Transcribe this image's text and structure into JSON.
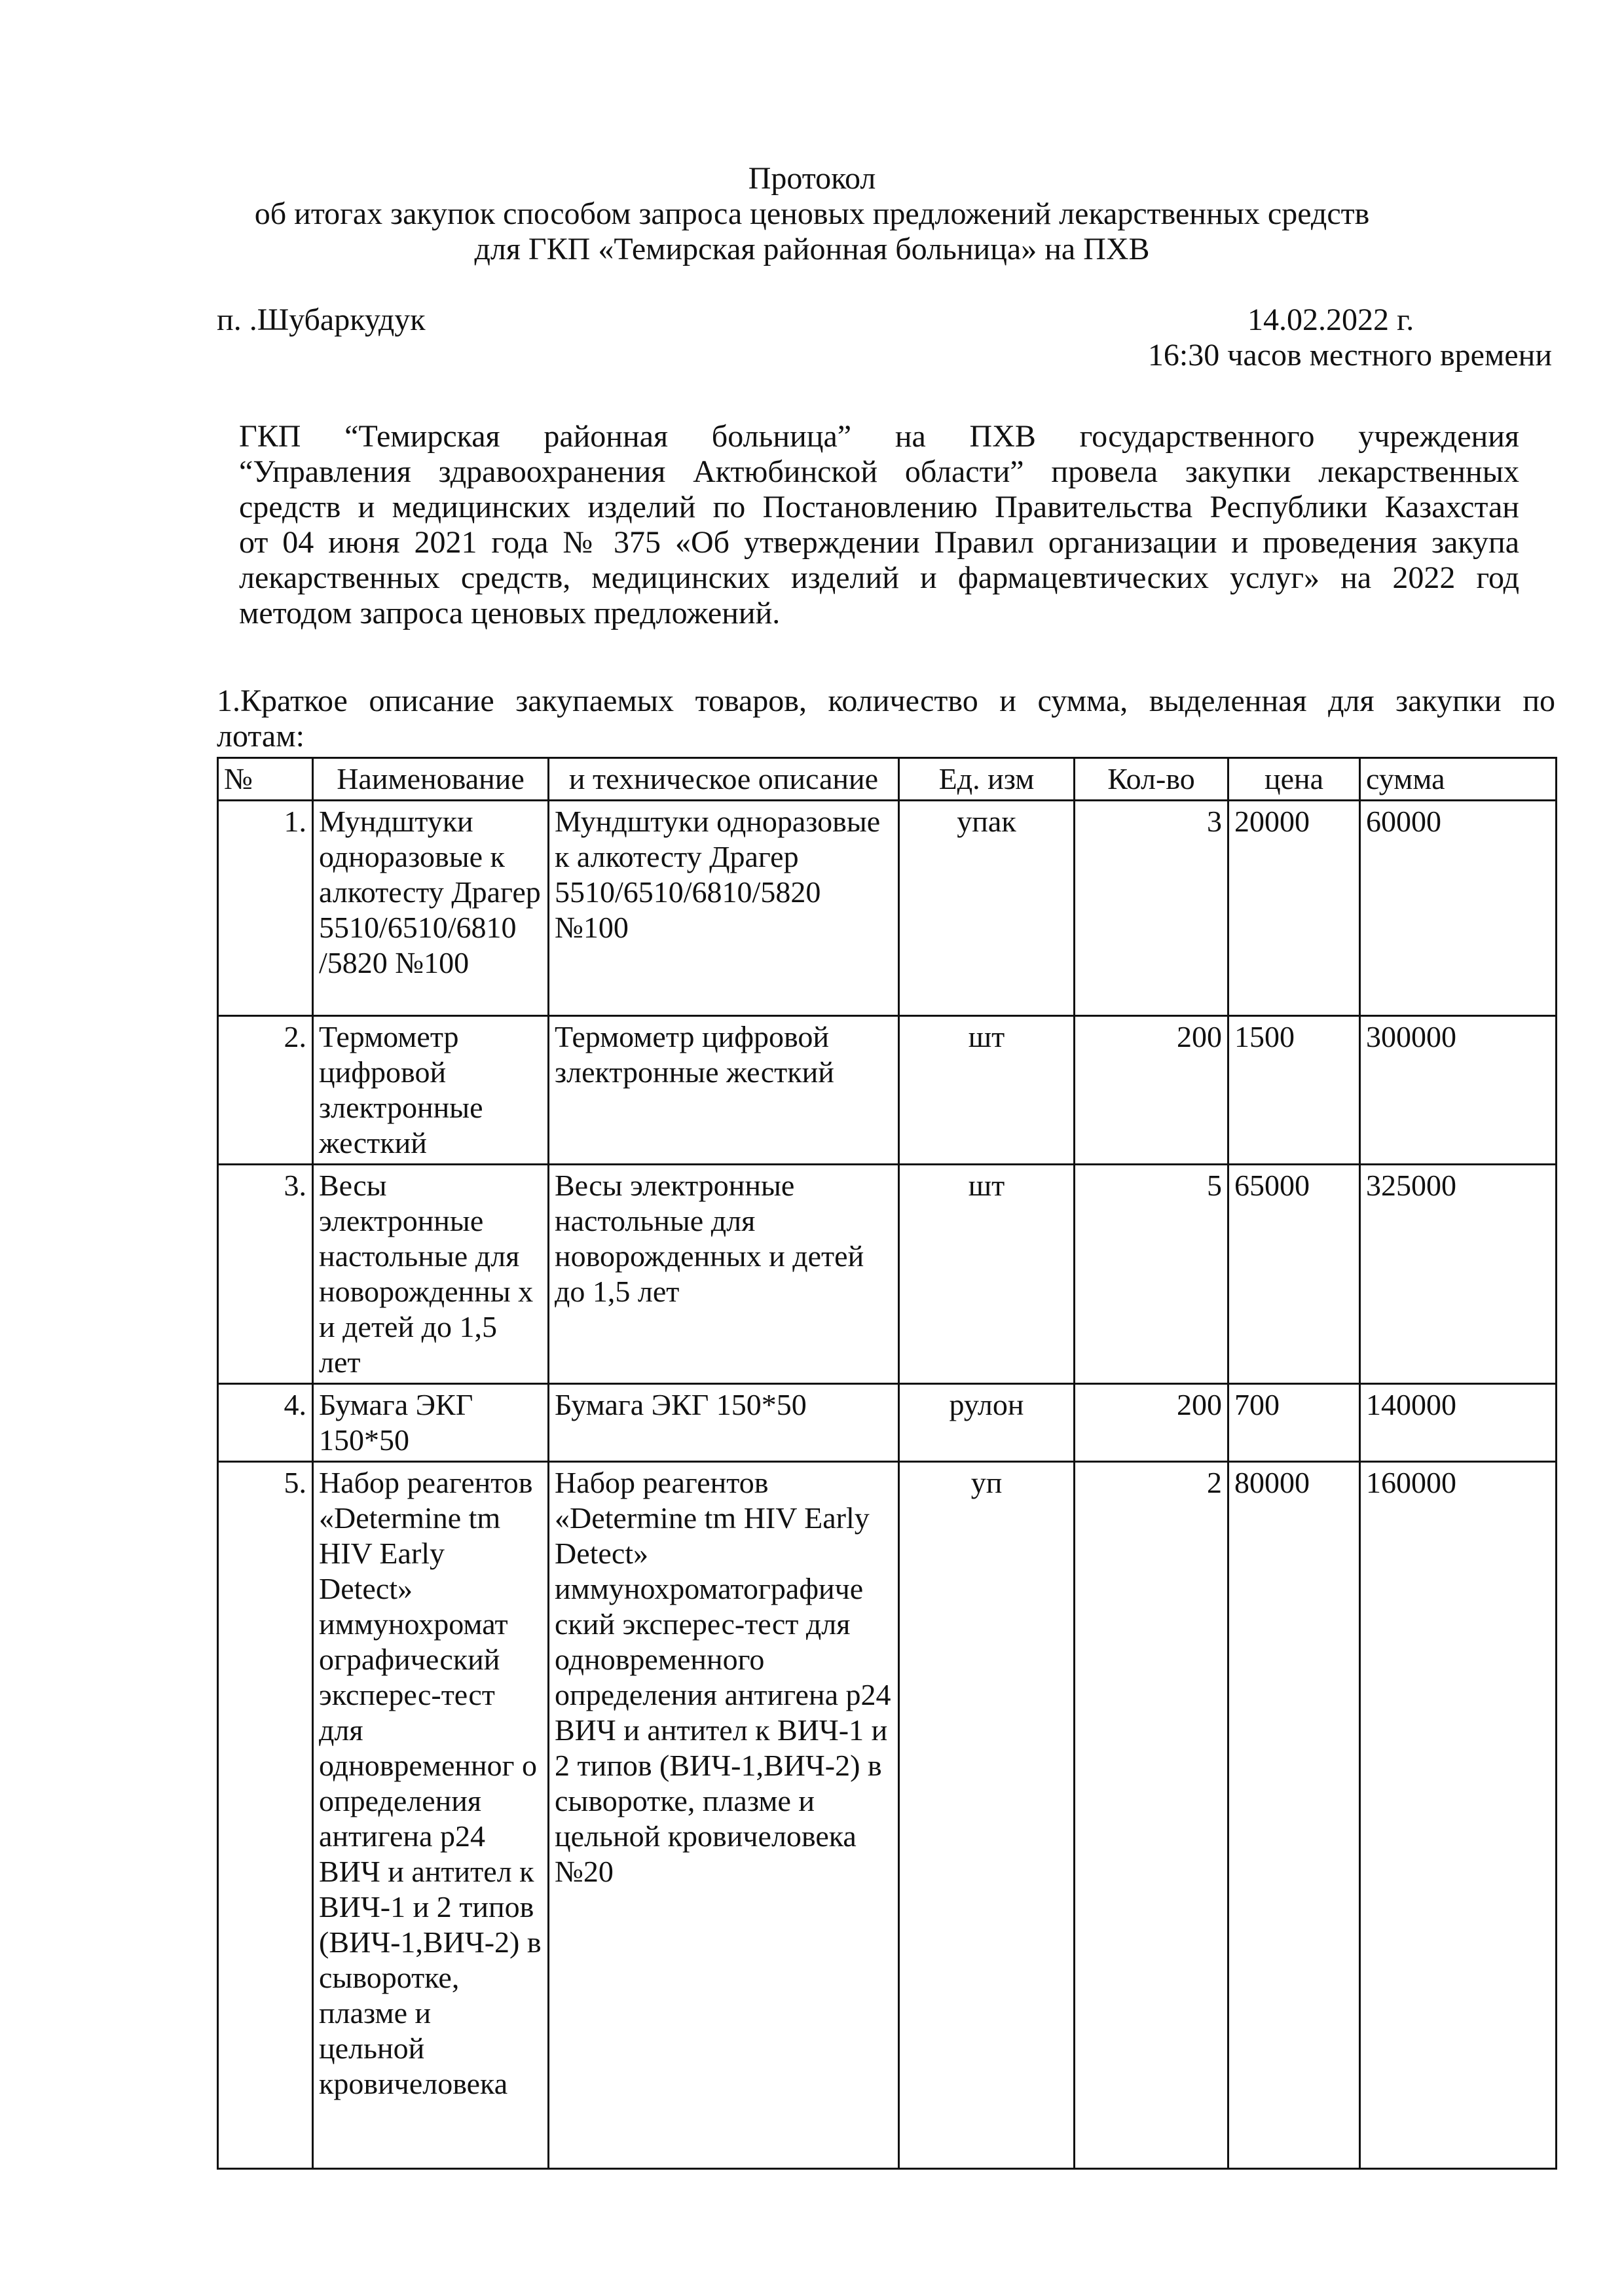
{
  "header": {
    "title": "Протокол",
    "subtitle_line1": "об итогах закупок способом запроса ценовых предложений лекарственных средств",
    "subtitle_line2": "для ГКП «Темирская районная больница» на ПХВ",
    "place": "п. .Шубаркудук",
    "date": "14.02.2022 г.",
    "time": "16:30 часов местного времени"
  },
  "body": {
    "paragraph_lines": [
      "ГКП “Темирская районная больница” на ПХВ  государственного учреждения",
      "“Управления здравоохранения Актюбинской области” провела закупки лекарственных",
      "средств и медицинских изделий по Постановлению Правительства Республики Казахстан",
      "от 04 июня 2021 года № 375 «Об утверждении Правил организации и проведения закупа",
      "лекарственных средств, медицинских изделий и фармацевтических услуг»  на 2022 год",
      "методом запроса ценовых предложений."
    ],
    "section1_line1": "1.Краткое описание  закупаемых товаров, количество и сумма, выделенная для закупки по",
    "section1_line2": "лотам:"
  },
  "table": {
    "headers": [
      "№",
      "Наименование",
      "и техническое описание",
      "Ед. изм",
      "Кол-во",
      "цена",
      "сумма"
    ],
    "rows": [
      {
        "no": "1.",
        "name": "Мундштуки одноразовые к алкотесту Драгер 5510/6510/6810 /5820 №100",
        "desc": "Мундштуки одноразовые к алкотесту Драгер 5510/6510/6810/5820 №100",
        "unit": "упак",
        "qty": "3",
        "price": "20000",
        "sum": "60000"
      },
      {
        "no": "2.",
        "name": "Термометр цифровой злектронные жесткий",
        "desc": "Термометр цифровой злектронные жесткий",
        "unit": "шт",
        "qty": "200",
        "price": "1500",
        "sum": "300000"
      },
      {
        "no": "3.",
        "name": "Весы электронные настольные для новорожденны х и детей до 1,5 лет",
        "desc": "Весы электронные настольные для новорожденных и детей до 1,5 лет",
        "unit": "шт",
        "qty": "5",
        "price": "65000",
        "sum": "325000"
      },
      {
        "no": "4.",
        "name": "Бумага ЭКГ 150*50",
        "desc": "Бумага ЭКГ 150*50",
        "unit": "рулон",
        "qty": "200",
        "price": "700",
        "sum": "140000"
      },
      {
        "no": "5.",
        "name": "Набор реагентов «Determine tm HIV Early Detect» иммунохромат ографический эксперес-тест для одновременног о определения антигена р24 ВИЧ и антител к ВИЧ-1 и 2 типов (ВИЧ-1,ВИЧ-2) в сыворотке, плазме и цельной кровичеловека",
        "desc": "Набор реагентов «Determine tm HIV Early Detect» иммунохроматографиче ский эксперес-тест для одновременного определения антигена р24 ВИЧ и антител к ВИЧ-1 и 2 типов (ВИЧ-1,ВИЧ-2) в сыворотке, плазме и цельной кровичеловека №20",
        "unit": "уп",
        "qty": "2",
        "price": "80000",
        "sum": "160000"
      }
    ]
  }
}
